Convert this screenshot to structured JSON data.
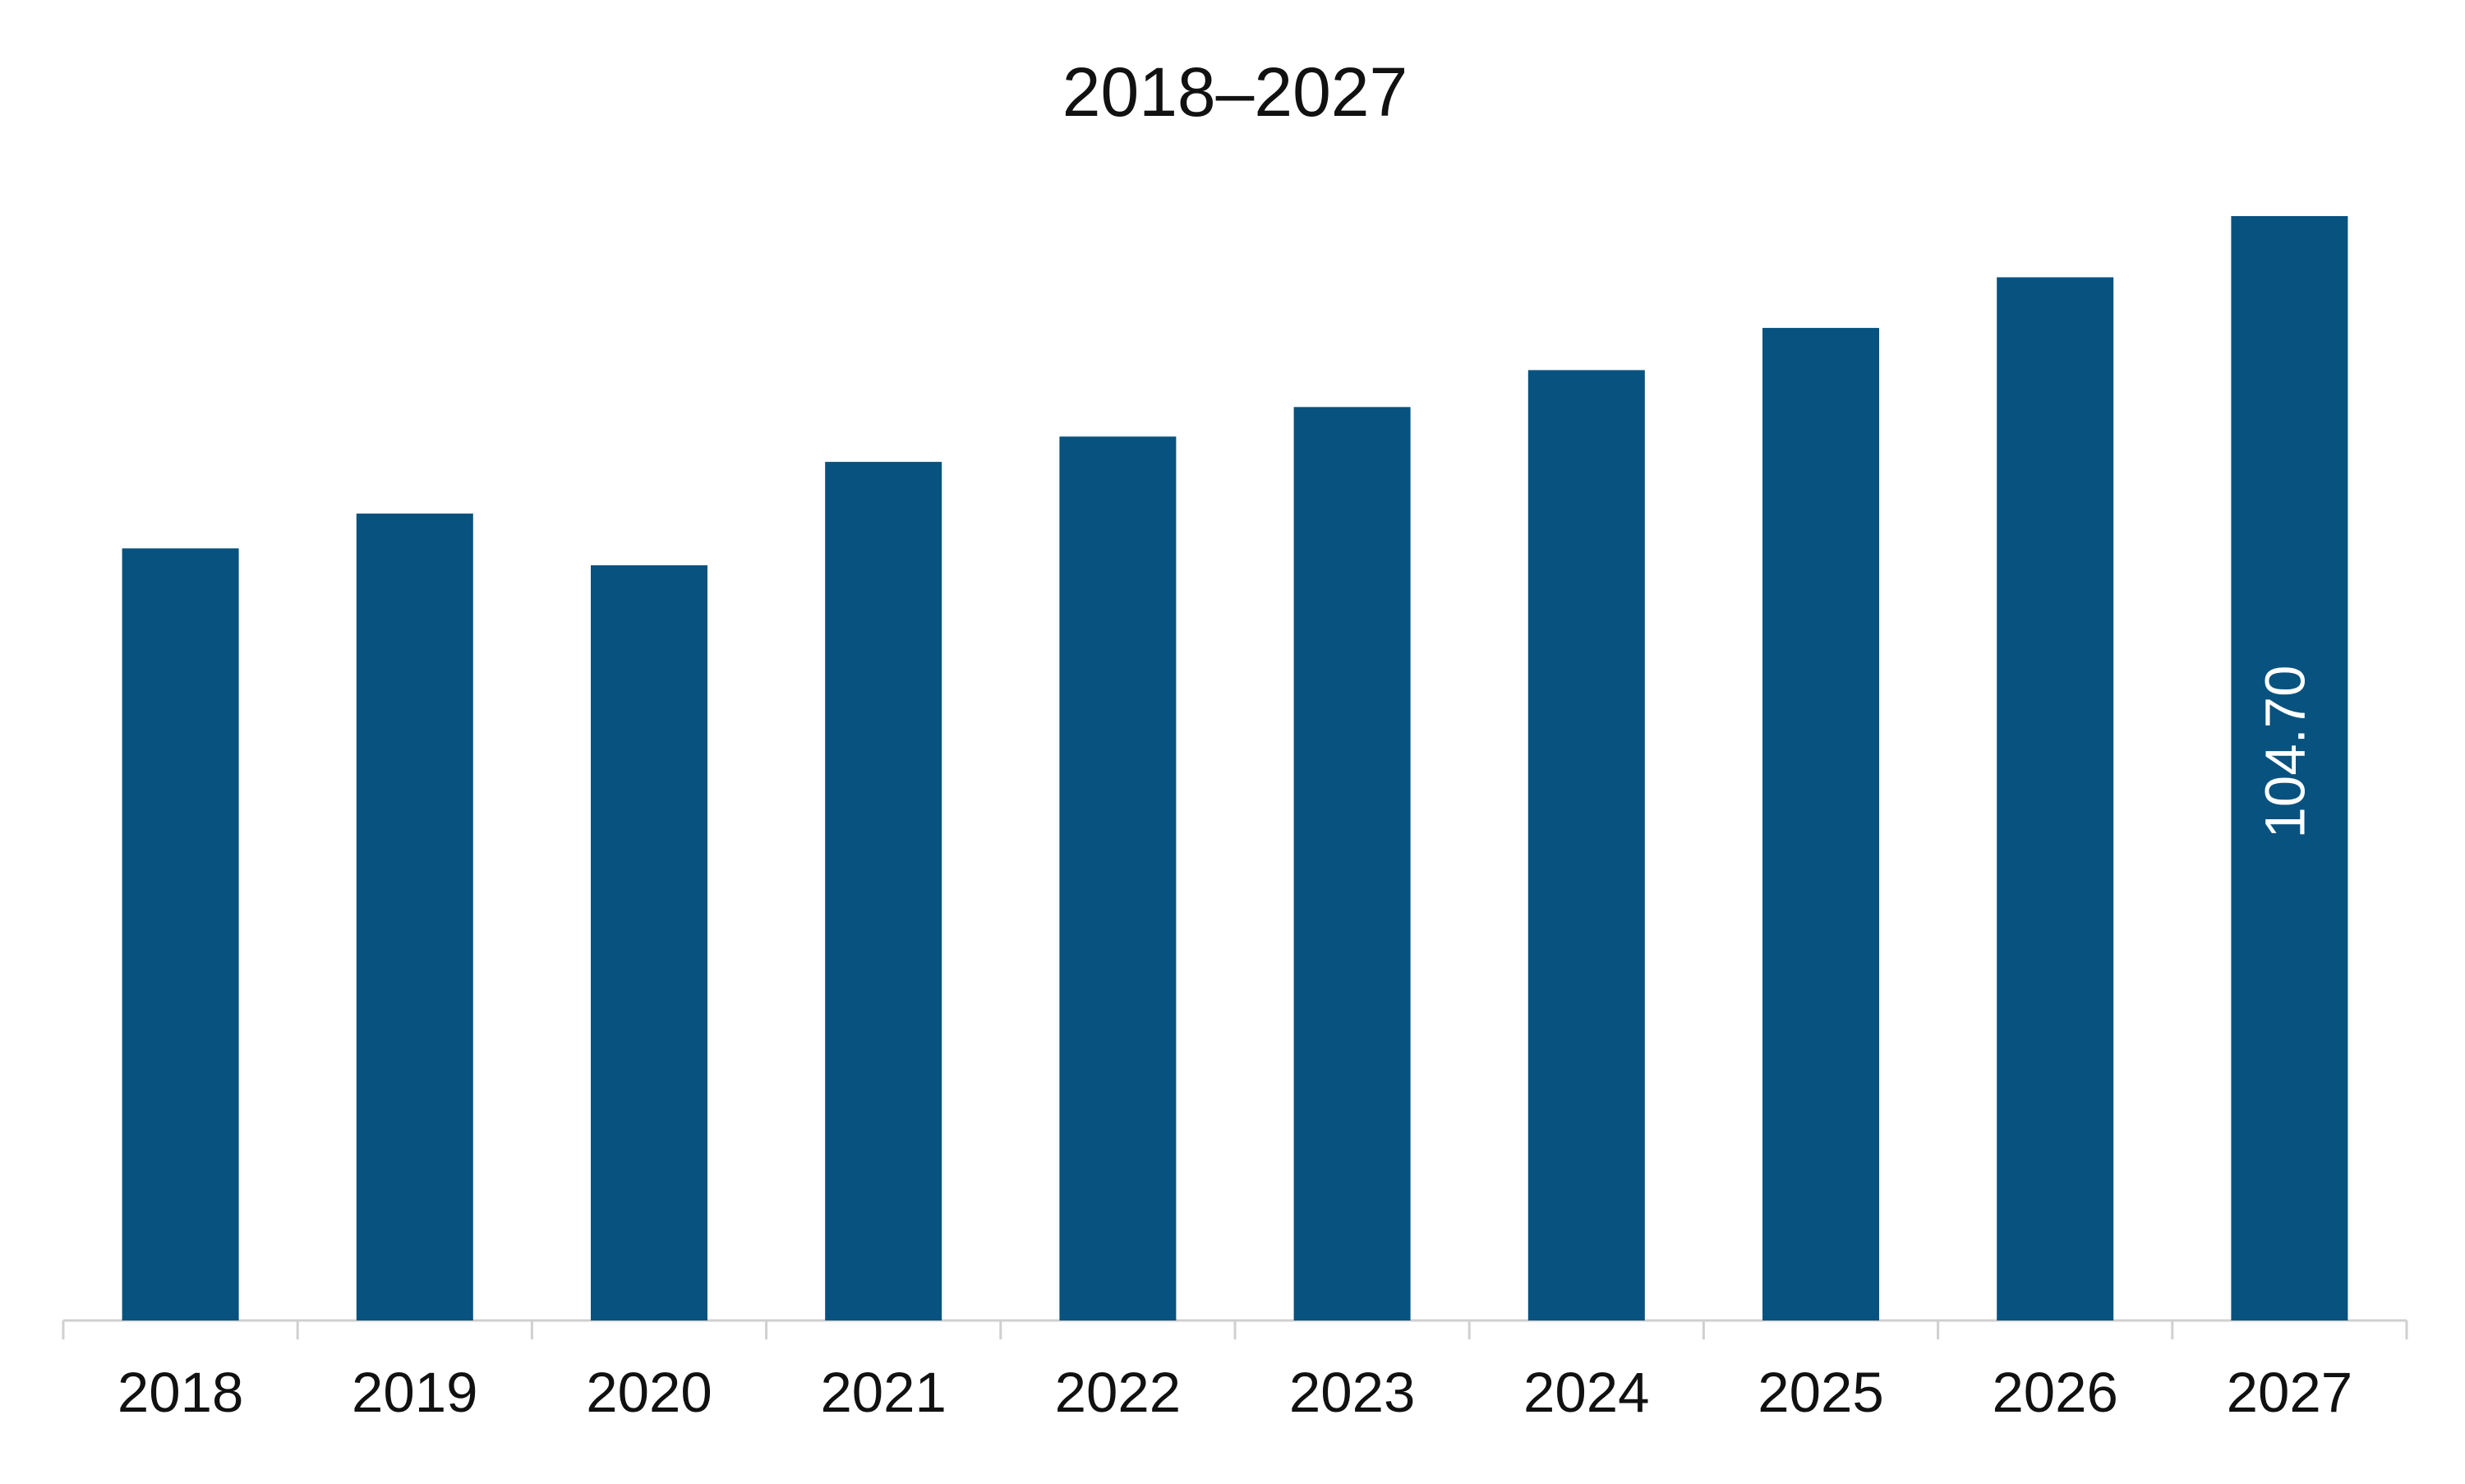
{
  "chart_data": {
    "type": "bar",
    "title": "2018–2027",
    "categories": [
      "2018",
      "2019",
      "2020",
      "2021",
      "2022",
      "2023",
      "2024",
      "2025",
      "2026",
      "2027"
    ],
    "values": [
      73.2,
      76.5,
      71.6,
      81.4,
      83.8,
      86.6,
      90.1,
      94.1,
      98.9,
      104.7
    ],
    "value_labels": [
      null,
      null,
      null,
      null,
      null,
      null,
      null,
      null,
      null,
      "104.70"
    ],
    "color": "#08527f"
  }
}
